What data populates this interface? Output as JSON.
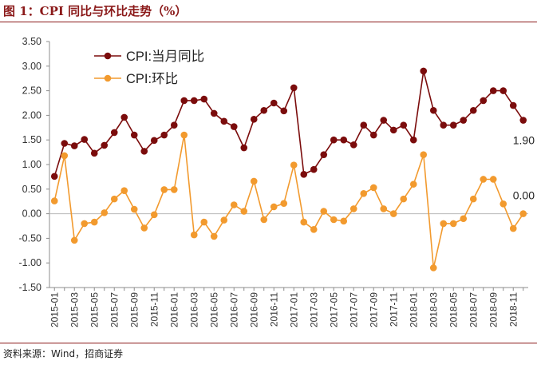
{
  "title": "图 1：CPI 同比与环比走势（%）",
  "source": "资料来源：Wind，招商证券",
  "chart_data": {
    "type": "line",
    "ylim": [
      -1.5,
      3.5
    ],
    "yticks": [
      "3.50",
      "3.00",
      "2.50",
      "2.00",
      "1.50",
      "1.00",
      "0.50",
      "0.00",
      "-0.50",
      "-1.00",
      "-1.50"
    ],
    "grid": false,
    "legend_position": "top-left",
    "categories": [
      "2015-01",
      "2015-02",
      "2015-03",
      "2015-04",
      "2015-05",
      "2015-06",
      "2015-07",
      "2015-08",
      "2015-09",
      "2015-10",
      "2015-11",
      "2015-12",
      "2016-01",
      "2016-02",
      "2016-03",
      "2016-04",
      "2016-05",
      "2016-06",
      "2016-07",
      "2016-08",
      "2016-09",
      "2016-10",
      "2016-11",
      "2016-12",
      "2017-01",
      "2017-02",
      "2017-03",
      "2017-04",
      "2017-05",
      "2017-06",
      "2017-07",
      "2017-08",
      "2017-09",
      "2017-10",
      "2017-11",
      "2017-12",
      "2018-01",
      "2018-02",
      "2018-03",
      "2018-04",
      "2018-05",
      "2018-06",
      "2018-07",
      "2018-08",
      "2018-09",
      "2018-10",
      "2018-11",
      "2018-12"
    ],
    "tick_labels": [
      "2015-01",
      "2015-03",
      "2015-05",
      "2015-07",
      "2015-09",
      "2015-11",
      "2016-01",
      "2016-03",
      "2016-05",
      "2016-07",
      "2016-09",
      "2016-11",
      "2017-01",
      "2017-03",
      "2017-05",
      "2017-07",
      "2017-09",
      "2017-11",
      "2018-01",
      "2018-03",
      "2018-05",
      "2018-07",
      "2018-09",
      "2018-11"
    ],
    "series": [
      {
        "name": "CPI:当月同比",
        "color": "#7b0c0c",
        "end_label": "1.90",
        "values": [
          0.76,
          1.43,
          1.38,
          1.51,
          1.23,
          1.39,
          1.65,
          1.96,
          1.6,
          1.27,
          1.49,
          1.6,
          1.8,
          2.3,
          2.3,
          2.33,
          2.04,
          1.88,
          1.77,
          1.34,
          1.92,
          2.1,
          2.25,
          2.09,
          2.56,
          0.8,
          0.9,
          1.2,
          1.5,
          1.5,
          1.4,
          1.8,
          1.6,
          1.9,
          1.7,
          1.8,
          1.5,
          2.9,
          2.1,
          1.8,
          1.8,
          1.9,
          2.1,
          2.3,
          2.5,
          2.5,
          2.2,
          1.9
        ]
      },
      {
        "name": "CPI:环比",
        "color": "#f29a2e",
        "end_label": "0.00",
        "values": [
          0.26,
          1.18,
          -0.54,
          -0.2,
          -0.17,
          0.02,
          0.3,
          0.47,
          0.09,
          -0.29,
          -0.02,
          0.49,
          0.49,
          1.6,
          -0.43,
          -0.17,
          -0.46,
          -0.13,
          0.18,
          0.05,
          0.66,
          -0.12,
          0.14,
          0.21,
          0.99,
          -0.17,
          -0.32,
          0.05,
          -0.12,
          -0.15,
          0.1,
          0.41,
          0.53,
          0.1,
          0.0,
          0.3,
          0.6,
          1.2,
          -1.1,
          -0.2,
          -0.2,
          -0.1,
          0.3,
          0.7,
          0.7,
          0.2,
          -0.3,
          0.0
        ]
      }
    ]
  }
}
